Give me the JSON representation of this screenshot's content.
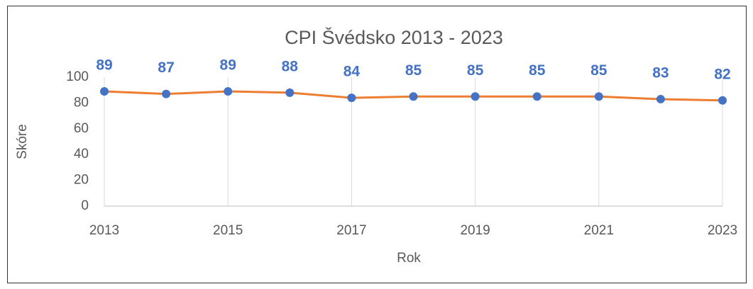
{
  "chart_data": {
    "type": "line",
    "title": "CPI Švédsko 2013 - 2023",
    "x_label": "Rok",
    "y_label": "Skóre",
    "x": [
      2013,
      2014,
      2015,
      2016,
      2017,
      2018,
      2019,
      2020,
      2021,
      2022,
      2023
    ],
    "values": [
      89,
      87,
      89,
      88,
      84,
      85,
      85,
      85,
      85,
      83,
      82
    ],
    "line_color": "#ed7d31",
    "marker_color": "#4472c4",
    "label_color": "#4472c4",
    "xlim": [
      2013,
      2023
    ],
    "xticks": [
      2013,
      2015,
      2017,
      2019,
      2021,
      2023
    ],
    "ylim": [
      0,
      100
    ],
    "yticks": [
      0,
      20,
      40,
      60,
      80,
      100
    ],
    "xgrid": true,
    "data_labels": true
  }
}
